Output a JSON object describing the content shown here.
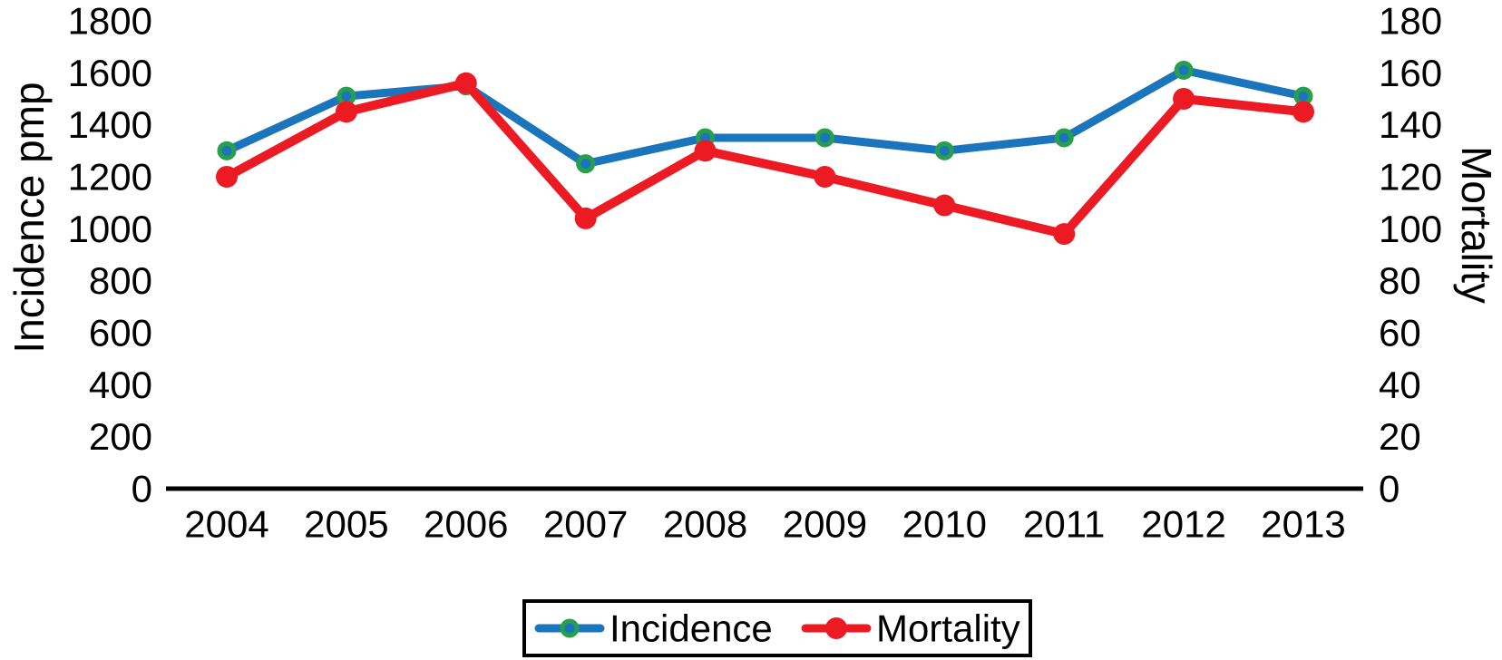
{
  "chart_data": {
    "type": "line",
    "title": "",
    "xlabel": "",
    "ylabel_left": "Incidence pmp",
    "ylabel_right": "Mortality",
    "categories": [
      "2004",
      "2005",
      "2006",
      "2007",
      "2008",
      "2009",
      "2010",
      "2011",
      "2012",
      "2013"
    ],
    "series": [
      {
        "name": "Incidence",
        "y_axis": "left",
        "color": "#1b75bc",
        "marker_edge_color": "#28a04b",
        "values": [
          1300,
          1510,
          1550,
          1250,
          1350,
          1350,
          1300,
          1350,
          1610,
          1510
        ]
      },
      {
        "name": "Mortality",
        "y_axis": "right",
        "color": "#ec1b23",
        "marker_edge_color": "#ec1b23",
        "values": [
          120,
          145,
          156,
          104,
          130,
          120,
          109,
          98,
          150,
          145
        ]
      }
    ],
    "left_axis": {
      "min": 0,
      "max": 1800,
      "ticks": [
        1800,
        1600,
        1400,
        1200,
        1000,
        800,
        600,
        400,
        200,
        0
      ]
    },
    "right_axis": {
      "min": 0,
      "max": 180,
      "ticks": [
        180,
        160,
        140,
        120,
        100,
        80,
        60,
        40,
        20,
        0
      ]
    },
    "grid": false,
    "legend": {
      "position": "bottom-center",
      "bordered": true
    }
  },
  "colors": {
    "axis_line": "#000000",
    "text": "#000000",
    "background": "#ffffff"
  }
}
